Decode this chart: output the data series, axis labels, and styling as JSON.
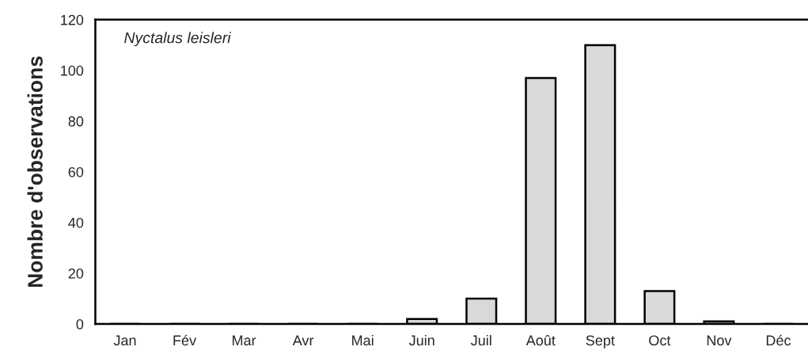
{
  "chart_data": {
    "type": "bar",
    "ylabel": "Nombre d'observations",
    "annotations": [
      "Nyctalus leisleri"
    ],
    "categories": [
      "Jan",
      "Fév",
      "Mar",
      "Avr",
      "Mai",
      "Juin",
      "Juil",
      "Août",
      "Sept",
      "Oct",
      "Nov",
      "Déc"
    ],
    "values": [
      0,
      0,
      0,
      0,
      0,
      2,
      10,
      97,
      110,
      13,
      1,
      0
    ],
    "color": "#d9d9d9",
    "ylim": [
      0,
      120
    ],
    "yticks": [
      0,
      20,
      40,
      60,
      80,
      100,
      120
    ],
    "grid": false
  }
}
